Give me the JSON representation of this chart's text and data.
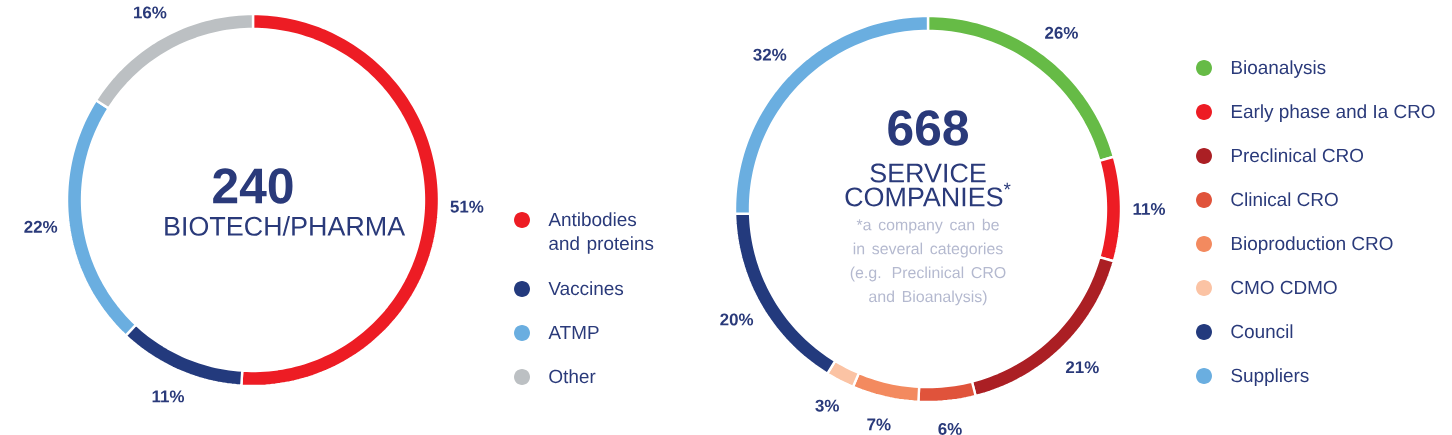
{
  "chart_data": [
    {
      "type": "donut",
      "categories": [
        "Antibodies and proteins",
        "Vaccines",
        "ATMP",
        "Other"
      ],
      "values": [
        51,
        11,
        22,
        16
      ],
      "colors": [
        "#ed1c24",
        "#233a7d",
        "#6aaee0",
        "#bcc0c3"
      ],
      "value_labels": [
        "51%",
        "11%",
        "22%",
        "16%"
      ],
      "annotations": [
        "240",
        "BIOTECH/PHARMA"
      ],
      "legend": "right"
    },
    {
      "type": "donut",
      "categories": [
        "Bioanalysis",
        "Early phase and Ia CRO",
        "Preclinical CRO",
        "Clinical CRO",
        "Bioproduction CRO",
        "CMO CDMO",
        "Council",
        "Suppliers"
      ],
      "values": [
        26,
        11,
        21,
        6,
        7,
        3,
        20,
        32
      ],
      "colors": [
        "#66bb46",
        "#ed1c24",
        "#ab1f24",
        "#e0533b",
        "#f38a5f",
        "#fbc3a4",
        "#233a7d",
        "#6aaee0"
      ],
      "value_labels": [
        "26%",
        "11%",
        "21%",
        "6%",
        "7%",
        "3%",
        "20%",
        "32%"
      ],
      "annotations": [
        "668",
        "SERVICE COMPANIES$^{*}$",
        "*a company can be in several categories (e.g. Preclinical CRO and Bioanalysis)"
      ],
      "legend": "right"
    }
  ]
}
